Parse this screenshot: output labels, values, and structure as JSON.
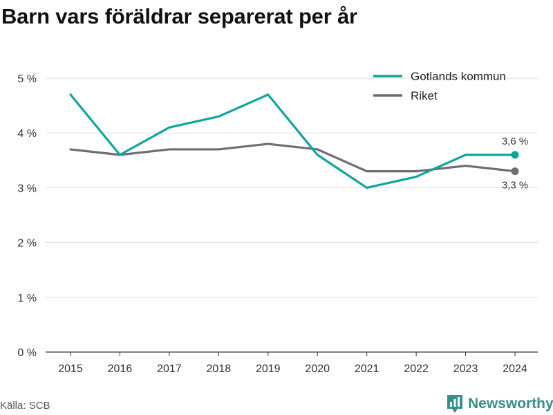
{
  "title": "Barn vars föräldrar separerat per år",
  "source": "Källa: SCB",
  "brand": {
    "name": "Newsworthy",
    "icon": "newsworthy-logo-icon",
    "color": "#3a8f8a"
  },
  "chart_data": {
    "type": "line",
    "title": "Barn vars föräldrar separerat per år",
    "x": [
      "2015",
      "2016",
      "2017",
      "2018",
      "2019",
      "2020",
      "2021",
      "2022",
      "2023",
      "2024"
    ],
    "series": [
      {
        "name": "Gotlands kommun",
        "color": "#0fa59a",
        "values": [
          4.7,
          3.6,
          4.1,
          4.3,
          4.7,
          3.6,
          3.0,
          3.2,
          3.6,
          3.6
        ]
      },
      {
        "name": "Riket",
        "color": "#6d6d76",
        "values": [
          3.7,
          3.6,
          3.7,
          3.7,
          3.8,
          3.7,
          3.3,
          3.3,
          3.4,
          3.3
        ]
      }
    ],
    "yticks": [
      "0 %",
      "1 %",
      "2 %",
      "3 %",
      "4 %",
      "5 %"
    ],
    "ylim": [
      0,
      5.5
    ],
    "grid": true,
    "legend_position": "top-right",
    "end_labels": [
      "3,6 %",
      "3,3 %"
    ]
  }
}
